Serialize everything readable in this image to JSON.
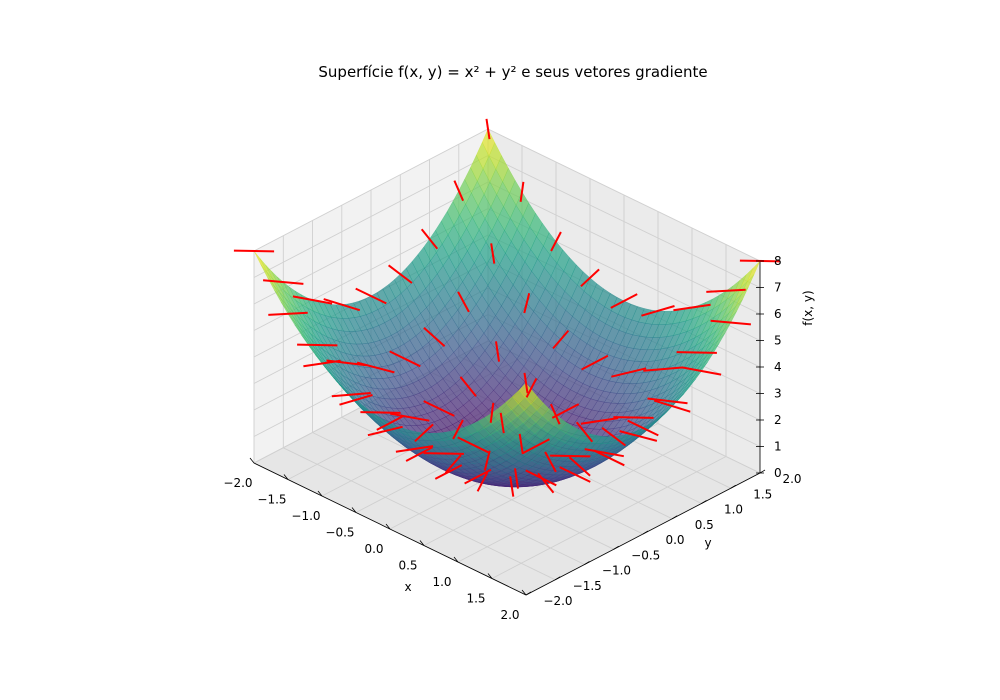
{
  "chart_data": {
    "type": "surface3d",
    "title": "Superfície f(x, y) = x² + y² e seus vetores gradiente",
    "xlabel": "x",
    "ylabel": "y",
    "zlabel": "f(x, y)",
    "function": "x^2 + y^2",
    "xlim": [
      -2,
      2
    ],
    "ylim": [
      -2,
      2
    ],
    "zlim": [
      0,
      8
    ],
    "xticks": [
      "−2.0",
      "−1.5",
      "−1.0",
      "−0.5",
      "0.0",
      "0.5",
      "1.0",
      "1.5",
      "2.0"
    ],
    "yticks": [
      "−2.0",
      "−1.5",
      "−1.0",
      "−0.5",
      "0.0",
      "0.5",
      "1.0",
      "1.5",
      "2.0"
    ],
    "zticks": [
      "0",
      "1",
      "2",
      "3",
      "4",
      "5",
      "6",
      "7",
      "8"
    ],
    "surface_colormap": "viridis",
    "surface_alpha": 0.7,
    "gradient_vectors": {
      "color": "#ff0000",
      "field": "(2x, 2y)",
      "grid": [
        -2,
        -1.5,
        -1,
        -0.5,
        0,
        0.5,
        1,
        1.5,
        2
      ]
    },
    "grid": true
  }
}
